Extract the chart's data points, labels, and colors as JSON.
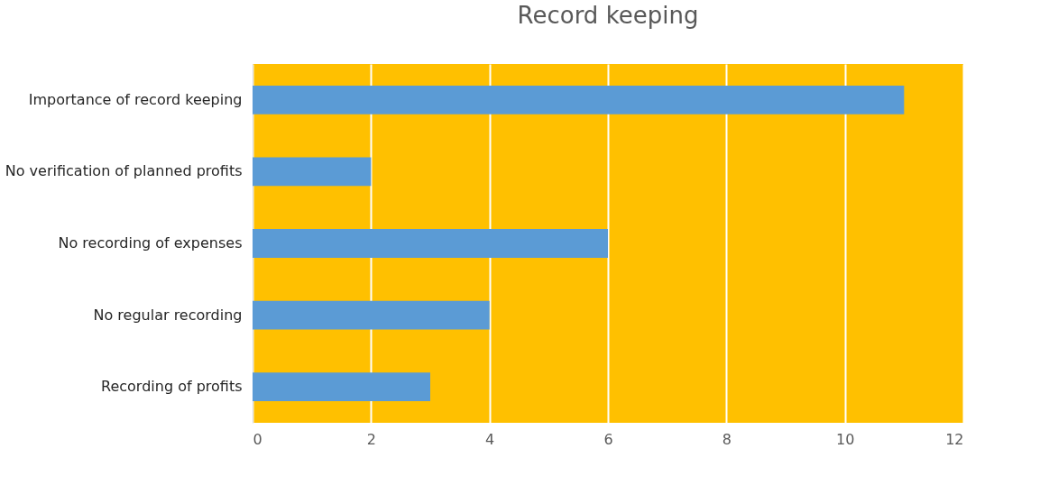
{
  "chart_data": {
    "type": "bar",
    "orientation": "horizontal",
    "title": "Record keeping",
    "categories": [
      "Importance of record keeping",
      "No verification of planned profits",
      "No recording of expenses",
      "No regular recording",
      "Recording of profits"
    ],
    "values": [
      11,
      2,
      6,
      4,
      3
    ],
    "color": "#5b9bd5",
    "xlim": [
      0,
      12
    ],
    "xticks": [
      0,
      2,
      4,
      6,
      8,
      10,
      12
    ],
    "grid": "x"
  }
}
